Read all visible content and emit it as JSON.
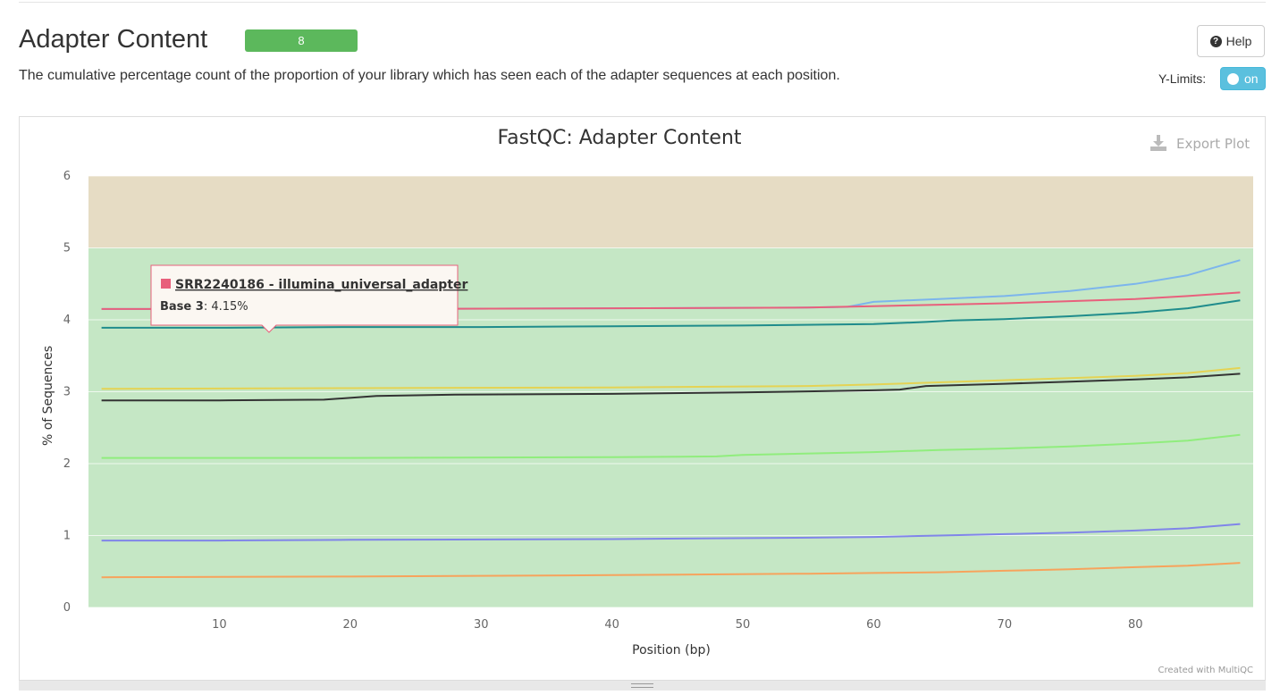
{
  "header": {
    "title": "Adapter Content",
    "badge": "8",
    "description": "The cumulative percentage count of the proportion of your library which has seen each of the adapter sequences at each position.",
    "help_label": "Help",
    "ylimits_label": "Y-Limits:",
    "ylimits_toggle": "on"
  },
  "colors": {
    "badge": "#5cb85c",
    "toggle": "#5bc0de",
    "band_warn": "#e6dcc4",
    "band_pass": "#c5e7c5"
  },
  "plot": {
    "export_label": "Export Plot",
    "credit": "Created with MultiQC",
    "tooltip": {
      "series_name": "SRR2240186 - illumina_universal_adapter",
      "base_label": "Base 3",
      "value_text": ": 4.15%",
      "series_color": "#e8607c"
    }
  },
  "chart_data": {
    "type": "line",
    "title": "FastQC: Adapter Content",
    "xlabel": "Position (bp)",
    "ylabel": "% of Sequences",
    "xlim": [
      0,
      89
    ],
    "ylim": [
      0,
      6
    ],
    "xticks": [
      10,
      20,
      30,
      40,
      50,
      60,
      70,
      80
    ],
    "yticks": [
      0,
      1,
      2,
      3,
      4,
      5,
      6
    ],
    "bands": [
      {
        "from": 5,
        "to": 6,
        "color": "#e6dcc4"
      },
      {
        "from": 0,
        "to": 5,
        "color": "#c5e7c5"
      }
    ],
    "grid": true,
    "series": [
      {
        "color": "#7cb5ec",
        "x": [
          1,
          20,
          40,
          55,
          58,
          60,
          65,
          70,
          75,
          80,
          84,
          88
        ],
        "y": [
          4.15,
          4.15,
          4.16,
          4.17,
          4.18,
          4.25,
          4.29,
          4.33,
          4.4,
          4.5,
          4.62,
          4.83
        ]
      },
      {
        "name": "SRR2240186 - illumina_universal_adapter",
        "color": "#e8607c",
        "x": [
          1,
          20,
          40,
          55,
          60,
          65,
          70,
          75,
          80,
          84,
          88
        ],
        "y": [
          4.15,
          4.15,
          4.16,
          4.17,
          4.19,
          4.21,
          4.23,
          4.26,
          4.29,
          4.33,
          4.38
        ]
      },
      {
        "color": "#1f8c8c",
        "x": [
          1,
          10,
          20,
          30,
          40,
          50,
          60,
          64,
          66,
          70,
          75,
          80,
          84,
          88
        ],
        "y": [
          3.89,
          3.89,
          3.9,
          3.9,
          3.91,
          3.92,
          3.94,
          3.97,
          3.99,
          4.01,
          4.05,
          4.1,
          4.16,
          4.27
        ]
      },
      {
        "color": "#e4d354",
        "x": [
          1,
          20,
          40,
          55,
          60,
          65,
          70,
          75,
          80,
          84,
          88
        ],
        "y": [
          3.04,
          3.05,
          3.06,
          3.08,
          3.1,
          3.13,
          3.16,
          3.19,
          3.22,
          3.26,
          3.33
        ]
      },
      {
        "color": "#333333",
        "x": [
          1,
          10,
          18,
          22,
          28,
          40,
          50,
          60,
          62,
          64,
          70,
          75,
          80,
          84,
          88
        ],
        "y": [
          2.88,
          2.88,
          2.89,
          2.94,
          2.96,
          2.97,
          2.99,
          3.02,
          3.03,
          3.08,
          3.11,
          3.14,
          3.17,
          3.2,
          3.25
        ]
      },
      {
        "color": "#90ed7d",
        "x": [
          1,
          20,
          40,
          48,
          50,
          60,
          65,
          70,
          75,
          80,
          84,
          88
        ],
        "y": [
          2.08,
          2.08,
          2.09,
          2.1,
          2.12,
          2.16,
          2.19,
          2.21,
          2.24,
          2.28,
          2.32,
          2.4
        ]
      },
      {
        "color": "#8085e9",
        "x": [
          1,
          10,
          20,
          40,
          55,
          60,
          65,
          70,
          75,
          80,
          84,
          88
        ],
        "y": [
          0.93,
          0.93,
          0.94,
          0.95,
          0.97,
          0.98,
          1.0,
          1.02,
          1.04,
          1.07,
          1.1,
          1.16
        ]
      },
      {
        "color": "#f7a35c",
        "x": [
          1,
          20,
          40,
          55,
          60,
          65,
          70,
          75,
          80,
          84,
          88
        ],
        "y": [
          0.42,
          0.43,
          0.45,
          0.47,
          0.48,
          0.49,
          0.51,
          0.53,
          0.56,
          0.58,
          0.62
        ]
      }
    ]
  }
}
